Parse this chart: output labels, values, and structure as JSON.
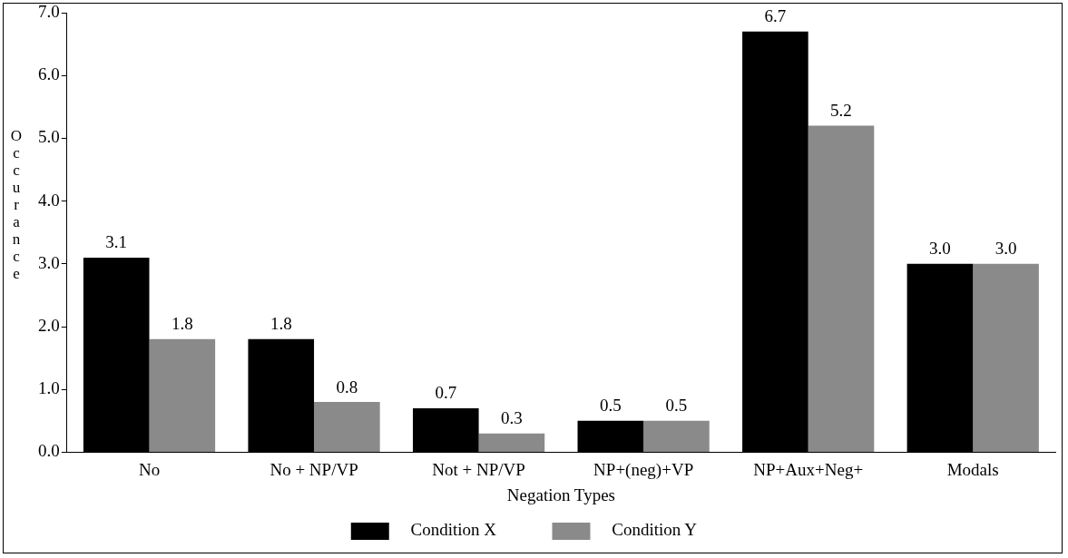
{
  "chart_data": {
    "type": "bar",
    "xlabel": "Negation Types",
    "ylabel": "Occurance",
    "categories": [
      "No",
      "No + NP/VP",
      "Not + NP/VP",
      "NP+(neg)+VP",
      "NP+Aux+Neg+",
      "Modals"
    ],
    "series": [
      {
        "name": "Condition X",
        "color": "#000000",
        "values": [
          3.1,
          1.8,
          0.7,
          0.5,
          6.7,
          3.0
        ],
        "value_labels": [
          "3.1",
          "1.8",
          "0.7",
          "0.5",
          "6.7",
          "3.0"
        ]
      },
      {
        "name": "Condition Y",
        "color": "#8a8a8a",
        "values": [
          1.8,
          0.8,
          0.3,
          0.5,
          5.2,
          3.0
        ],
        "value_labels": [
          "1.8",
          "0.8",
          "0.3",
          "0.5",
          "5.2",
          "3.0"
        ]
      }
    ],
    "ylim": [
      0,
      7
    ],
    "yticks": [
      {
        "value": 0,
        "label": "0.0"
      },
      {
        "value": 1,
        "label": "1.0"
      },
      {
        "value": 2,
        "label": "2.0"
      },
      {
        "value": 3,
        "label": "3.0"
      },
      {
        "value": 4,
        "label": "4.0"
      },
      {
        "value": 5,
        "label": "5.0"
      },
      {
        "value": 6,
        "label": "6.0"
      },
      {
        "value": 7,
        "label": "7.0"
      }
    ],
    "grid": false,
    "legend": "bottom"
  }
}
